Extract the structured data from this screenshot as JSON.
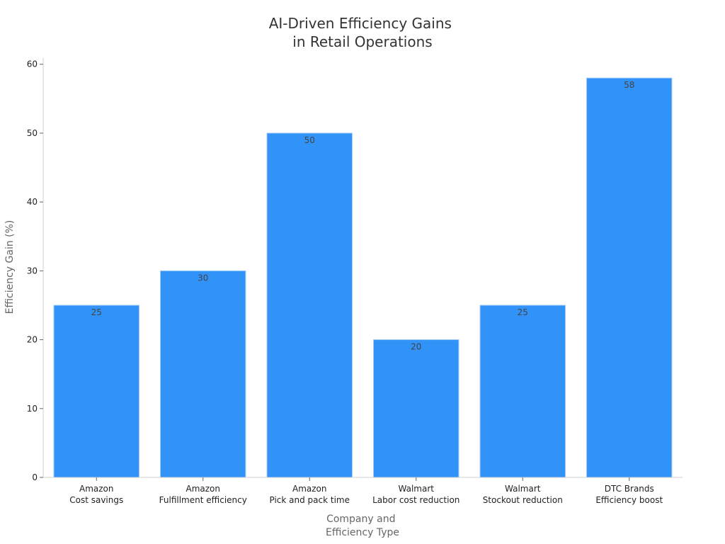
{
  "chart_data": {
    "type": "bar",
    "title_lines": [
      "AI-Driven Efficiency Gains",
      "in Retail Operations"
    ],
    "xlabel_lines": [
      "Company and",
      "Efficiency Type"
    ],
    "ylabel": "Efficiency Gain (%)",
    "categories": [
      [
        "Amazon",
        "Cost savings"
      ],
      [
        "Amazon",
        "Fulfillment efficiency"
      ],
      [
        "Amazon",
        "Pick and pack time"
      ],
      [
        "Walmart",
        "Labor cost reduction"
      ],
      [
        "Walmart",
        "Stockout reduction"
      ],
      [
        "DTC Brands",
        "Efficiency boost"
      ]
    ],
    "values": [
      25,
      30,
      50,
      20,
      25,
      58
    ],
    "data_labels": [
      "25",
      "30",
      "50",
      "20",
      "25",
      "58"
    ],
    "ylim": [
      0,
      61
    ],
    "yticks": [
      0,
      10,
      20,
      30,
      40,
      50,
      60
    ],
    "ytick_labels": [
      "0",
      "10",
      "20",
      "30",
      "40",
      "50",
      "60"
    ],
    "grid": false,
    "legend": "none",
    "bar_color": "#3192f7"
  }
}
